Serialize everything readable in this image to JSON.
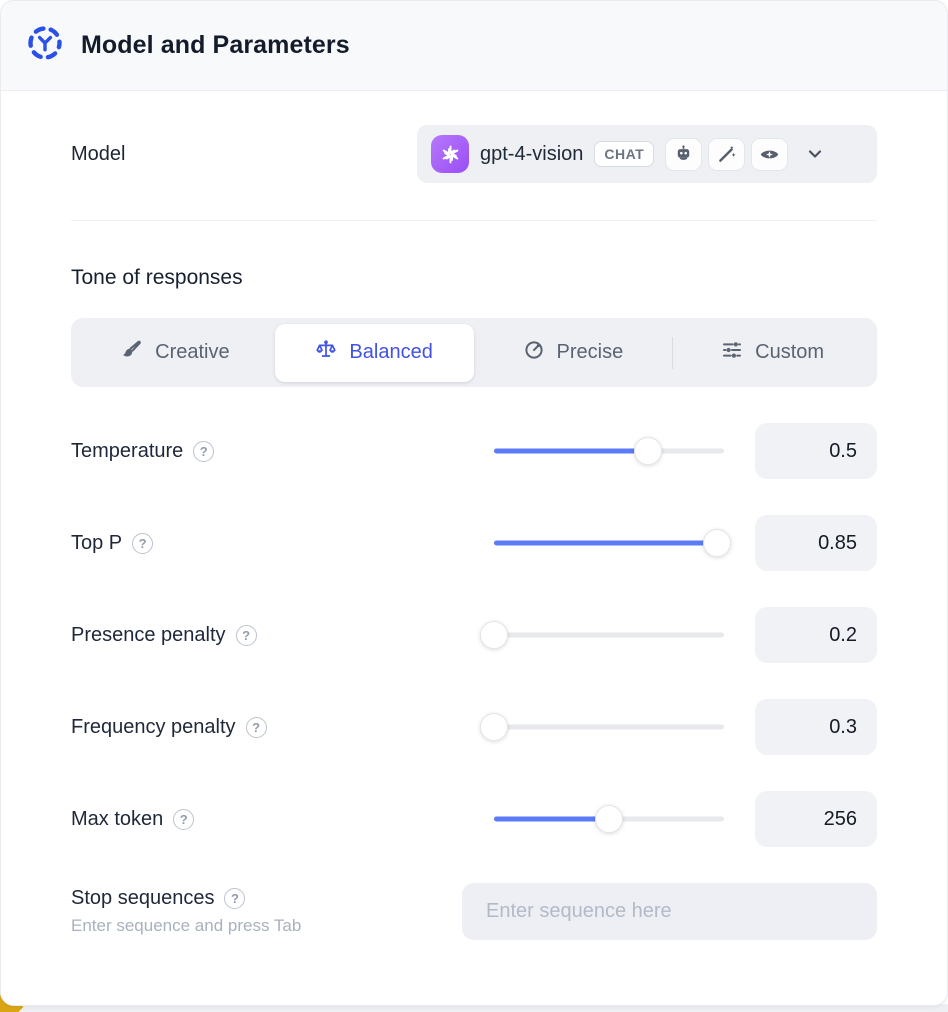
{
  "header": {
    "title": "Model and Parameters"
  },
  "model": {
    "label": "Model",
    "selected": "gpt-4-vision",
    "type_badge": "CHAT",
    "capability_icons": [
      "assistant-robot",
      "magic-wand",
      "vision-eye"
    ]
  },
  "tone": {
    "heading": "Tone of responses",
    "options": [
      {
        "label": "Creative",
        "icon": "brush-icon",
        "selected": false
      },
      {
        "label": "Balanced",
        "icon": "scale-icon",
        "selected": true
      },
      {
        "label": "Precise",
        "icon": "target-icon",
        "selected": false
      },
      {
        "label": "Custom",
        "icon": "sliders-icon",
        "selected": false
      }
    ]
  },
  "parameters": [
    {
      "label": "Temperature",
      "value": "0.5",
      "fill_pct": 67
    },
    {
      "label": "Top P",
      "value": "0.85",
      "fill_pct": 97
    },
    {
      "label": "Presence penalty",
      "value": "0.2",
      "fill_pct": 0
    },
    {
      "label": "Frequency penalty",
      "value": "0.3",
      "fill_pct": 0
    },
    {
      "label": "Max token",
      "value": "256",
      "fill_pct": 50
    }
  ],
  "stop_sequences": {
    "label": "Stop sequences",
    "hint": "Enter sequence and press Tab",
    "placeholder": "Enter sequence here"
  },
  "help_glyph": "?",
  "colors": {
    "accent_blue": "#4152e4",
    "slider_blue": "#5b7bf7",
    "brand_purple": "#9a4ef6",
    "accent_gold": "#d9a514"
  }
}
